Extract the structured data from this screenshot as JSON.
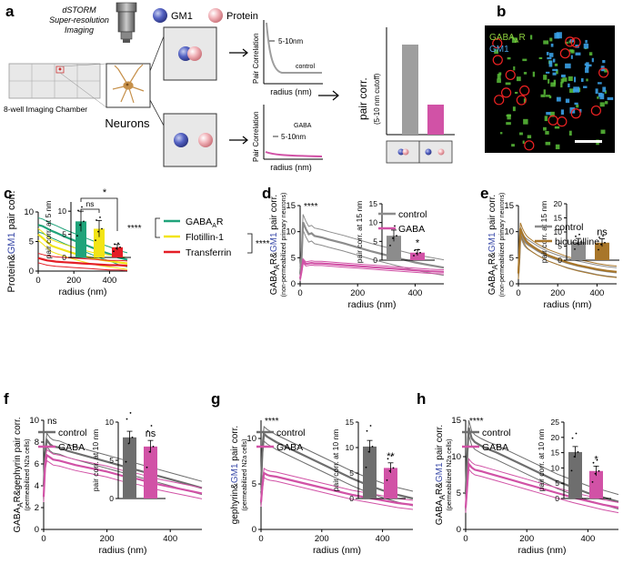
{
  "panel_labels": {
    "a": "a",
    "b": "b",
    "c": "c",
    "d": "d",
    "e": "e",
    "f": "f",
    "g": "g",
    "h": "h"
  },
  "colors": {
    "gm1": "#3a4aa8",
    "protein": "#e8a0a6",
    "grey": "#8c8c8c",
    "dark_grey": "#6e6e6e",
    "pink": "#d152a6",
    "green": "#1fa37a",
    "yellow": "#f2e416",
    "red": "#e41e26",
    "bronze": "#a8762a"
  },
  "schematic": {
    "dstorm_line1": "dSTORM",
    "dstorm_line2": "Super-resolution",
    "dstorm_line3": "Imaging",
    "legend_gm1": "GM1",
    "legend_protein": "Protein",
    "chamber_label": "8-well Imaging Chamber",
    "neurons_label": "Neurons",
    "top_curve": {
      "ylabel": "Pair Correlation",
      "xlabel": "radius (nm)",
      "annotation": "5-10nm",
      "series_label": "control"
    },
    "bottom_curve": {
      "ylabel": "Pair Correlation",
      "xlabel": "radius (nm)",
      "annotation": "5-10nm",
      "series_label": "GABA"
    },
    "bar": {
      "ylabel_line1": "pair corr.",
      "ylabel_line2": "(5-10 nm cutoff)",
      "values": [
        0.9,
        0.3
      ]
    }
  },
  "microscopy": {
    "label_gaba": "GABAAR",
    "label_gaba_main": "GABA",
    "label_gaba_sub": "A",
    "label_gaba_end": "R",
    "label_gm1": "GM1"
  },
  "chart_data": [
    {
      "id": "c",
      "type": "line",
      "ylabel_part1": "Protein&",
      "ylabel_part2": "GM1",
      "ylabel_part3": " pair corr.",
      "xlabel": "radius (nm)",
      "xlim": [
        0,
        500
      ],
      "ylim": [
        0,
        10
      ],
      "xticks": [
        "0",
        "200",
        "400"
      ],
      "yticks": [
        "0",
        "5",
        "10"
      ],
      "x": [
        0,
        25,
        50,
        75,
        100,
        150,
        200,
        250,
        300,
        350,
        400,
        450,
        500
      ],
      "series": [
        {
          "name": "GABAAR",
          "label_main": "GABA",
          "label_sub": "A",
          "label_end": "R",
          "color": "#1fa37a",
          "values": [
            7.8,
            7.6,
            7.2,
            6.8,
            6.5,
            5.8,
            5.2,
            4.6,
            4.0,
            3.4,
            2.9,
            2.3,
            1.9
          ],
          "err": 1.2
        },
        {
          "name": "Flotillin-1",
          "color": "#f2e416",
          "values": [
            6.2,
            5.6,
            4.9,
            4.3,
            4.0,
            3.5,
            3.0,
            2.6,
            2.2,
            1.9,
            1.7,
            1.5,
            1.3
          ],
          "err": 1.0
        },
        {
          "name": "Transferrin",
          "color": "#e41e26",
          "values": [
            2.2,
            2.0,
            1.8,
            1.7,
            1.6,
            1.5,
            1.4,
            1.3,
            1.2,
            1.1,
            1.0,
            1.0,
            0.9
          ],
          "err": 0.8
        }
      ],
      "inset": {
        "ylabel": "pair corr. at 5 nm",
        "yticks": [
          "0",
          "5",
          "10"
        ],
        "ylim": [
          0,
          12
        ],
        "values": [
          7.8,
          6.2,
          2.2
        ],
        "err": [
          2.2,
          1.8,
          0.6
        ],
        "colors": [
          "#1fa37a",
          "#f2e416",
          "#e41e26"
        ],
        "sig_ns": "ns",
        "sig_star": "*"
      },
      "sig_brackets": [
        "****",
        "****"
      ]
    },
    {
      "id": "d",
      "type": "line",
      "ylabel_part1": "GABA",
      "ylabel_sub": "A",
      "ylabel_part2": "R&",
      "ylabel_part3": "GM1",
      "ylabel_part4": " pair corr.",
      "ylabel_sub2": "(non-permeabilized primary neurons)",
      "xlabel": "radius (nm)",
      "xlim": [
        0,
        500
      ],
      "ylim": [
        0,
        15
      ],
      "xticks": [
        "0",
        "200",
        "400"
      ],
      "yticks": [
        "0",
        "5",
        "10",
        "15"
      ],
      "x": [
        0,
        5,
        10,
        20,
        30,
        40,
        50,
        75,
        100,
        150,
        200,
        250,
        300,
        350,
        400,
        450,
        500
      ],
      "series": [
        {
          "name": "control",
          "color": "#8c8c8c",
          "values": [
            2,
            5,
            11.8,
            10.5,
            9.5,
            9.7,
            9.2,
            8.9,
            8.5,
            7.8,
            7.0,
            6.2,
            5.5,
            4.8,
            4.1,
            3.6,
            3.1
          ],
          "err": 1.5
        },
        {
          "name": "GABA",
          "color": "#d152a6",
          "values": [
            1,
            2.5,
            4.4,
            3.8,
            3.9,
            4.0,
            3.9,
            3.9,
            3.8,
            3.6,
            3.4,
            3.2,
            3.0,
            2.8,
            2.6,
            2.4,
            2.3
          ],
          "err": 0.4
        }
      ],
      "inset": {
        "ylabel": "pair corr. at 15 nm",
        "yticks": [
          "0",
          "5",
          "10",
          "15"
        ],
        "ylim": [
          0,
          15
        ],
        "values": [
          6.5,
          2.0
        ],
        "err": [
          1.5,
          0.8
        ],
        "colors": [
          "#8c8c8c",
          "#d152a6"
        ],
        "sig": "*"
      },
      "sig": "****"
    },
    {
      "id": "e",
      "type": "line",
      "ylabel_part1": "GABA",
      "ylabel_sub": "A",
      "ylabel_part2": "R&",
      "ylabel_part3": "GM1",
      "ylabel_part4": " pair corr.",
      "ylabel_sub2": "(non-permeabilized primary neurons)",
      "xlabel": "radius (nm)",
      "xlim": [
        0,
        500
      ],
      "ylim": [
        0,
        15
      ],
      "xticks": [
        "0",
        "200",
        "400"
      ],
      "yticks": [
        "0",
        "5",
        "10",
        "15"
      ],
      "x": [
        0,
        5,
        10,
        20,
        30,
        40,
        50,
        75,
        100,
        150,
        200,
        250,
        300,
        350,
        400,
        450,
        500
      ],
      "series": [
        {
          "name": "control",
          "color": "#8c8c8c",
          "values": [
            2,
            5,
            10,
            9,
            8.2,
            7.8,
            7.5,
            6.9,
            6.3,
            5.3,
            4.6,
            4.0,
            3.5,
            3.1,
            2.7,
            2.4,
            2.2
          ],
          "err": 0.9
        },
        {
          "name": "bicuculline",
          "color": "#a8762a",
          "values": [
            2,
            6,
            10.6,
            9.6,
            8.8,
            8.2,
            7.8,
            7.1,
            6.5,
            5.5,
            4.8,
            4.1,
            3.6,
            3.2,
            2.8,
            2.5,
            2.3
          ],
          "err": 1.1
        }
      ],
      "inset": {
        "ylabel": "pair corr. at 15 nm",
        "yticks": [
          "0",
          "5",
          "10",
          "15",
          "20"
        ],
        "ylim": [
          0,
          20
        ],
        "values": [
          6.5,
          6.2
        ],
        "err": [
          1.2,
          1.4
        ],
        "colors": [
          "#8c8c8c",
          "#a8762a"
        ],
        "sig": "ns"
      }
    },
    {
      "id": "f",
      "type": "line",
      "ylabel_part1": "GABA",
      "ylabel_sub": "A",
      "ylabel_part2": "R&gephyrin pair corr.",
      "ylabel_sub2": "(permeabilized N2a cells)",
      "xlabel": "radius (nm)",
      "xlim": [
        0,
        500
      ],
      "ylim": [
        0,
        10
      ],
      "xticks": [
        "0",
        "200",
        "400"
      ],
      "yticks": [
        "0",
        "2",
        "4",
        "6",
        "8",
        "10"
      ],
      "x": [
        0,
        5,
        10,
        20,
        30,
        50,
        75,
        100,
        150,
        200,
        250,
        300,
        350,
        400,
        450,
        500
      ],
      "series": [
        {
          "name": "control",
          "color": "#6e6e6e",
          "values": [
            4,
            7,
            8.2,
            7.8,
            7.6,
            7.5,
            7.2,
            7.0,
            6.6,
            6.2,
            5.8,
            5.4,
            5.0,
            4.6,
            4.2,
            3.8
          ],
          "err": 0.6
        },
        {
          "name": "GABA",
          "color": "#d152a6",
          "values": [
            3,
            6,
            6.8,
            6.6,
            6.4,
            6.3,
            6.1,
            5.9,
            5.6,
            5.3,
            4.9,
            4.6,
            4.2,
            3.9,
            3.6,
            3.3
          ],
          "err": 0.5
        }
      ],
      "inset": {
        "ylabel": "pair corr. at 10 nm",
        "yticks": [
          "0",
          "5",
          "10"
        ],
        "ylim": [
          0,
          10
        ],
        "values": [
          8.0,
          6.8
        ],
        "err": [
          0.8,
          0.8
        ],
        "colors": [
          "#6e6e6e",
          "#d152a6"
        ],
        "sig": "ns"
      },
      "sig": "ns"
    },
    {
      "id": "g",
      "type": "line",
      "ylabel_part1": "gephyrin&",
      "ylabel_part2": "GM1",
      "ylabel_part3": " pair corr.",
      "ylabel_sub2": "(permeabilized N2a cells)",
      "xlabel": "radius (nm)",
      "xlim": [
        0,
        500
      ],
      "ylim": [
        0,
        12
      ],
      "xticks": [
        "0",
        "200",
        "400"
      ],
      "yticks": [
        "0",
        "5",
        "10"
      ],
      "x": [
        0,
        5,
        10,
        20,
        30,
        50,
        75,
        100,
        150,
        200,
        250,
        300,
        350,
        400,
        450,
        500
      ],
      "series": [
        {
          "name": "control",
          "color": "#6e6e6e",
          "values": [
            5,
            9,
            10.5,
            10.2,
            10.0,
            9.6,
            9.2,
            8.8,
            8.0,
            7.2,
            6.4,
            5.6,
            4.9,
            4.3,
            3.8,
            3.4
          ],
          "err": 0.8
        },
        {
          "name": "GABA",
          "color": "#d152a6",
          "values": [
            3,
            5,
            6.2,
            6.0,
            5.9,
            5.8,
            5.6,
            5.4,
            5.0,
            4.6,
            4.2,
            3.8,
            3.5,
            3.2,
            2.9,
            2.7
          ],
          "err": 0.5
        }
      ],
      "inset": {
        "ylabel": "pair corr. at 10 nm",
        "yticks": [
          "0",
          "5",
          "10",
          "15"
        ],
        "ylim": [
          0,
          15
        ],
        "values": [
          10.2,
          6.0
        ],
        "err": [
          1.2,
          1.0
        ],
        "colors": [
          "#6e6e6e",
          "#d152a6"
        ],
        "sig": "**"
      },
      "sig": "****"
    },
    {
      "id": "h",
      "type": "line",
      "ylabel_part1": "GABA",
      "ylabel_sub": "A",
      "ylabel_part2": "R&",
      "ylabel_part3": "GM1",
      "ylabel_part4": " pair corr.",
      "ylabel_sub2": "(permeabilized N2a cells)",
      "xlabel": "radius (nm)",
      "xlim": [
        0,
        500
      ],
      "ylim": [
        0,
        15
      ],
      "xticks": [
        "0",
        "200",
        "400"
      ],
      "yticks": [
        "0",
        "5",
        "10",
        "15"
      ],
      "x": [
        0,
        5,
        10,
        20,
        30,
        50,
        75,
        100,
        150,
        200,
        250,
        300,
        350,
        400,
        450,
        500
      ],
      "series": [
        {
          "name": "control",
          "color": "#6e6e6e",
          "values": [
            5,
            10,
            14,
            12.5,
            12.0,
            11.5,
            11.0,
            10.6,
            9.6,
            8.6,
            7.6,
            6.6,
            5.8,
            5.0,
            4.4,
            3.8
          ],
          "err": 1.0
        },
        {
          "name": "GABA",
          "color": "#d152a6",
          "values": [
            3,
            6,
            9.0,
            8.5,
            8.2,
            8.0,
            7.7,
            7.4,
            6.8,
            6.2,
            5.6,
            5.0,
            4.4,
            3.9,
            3.4,
            3.0
          ],
          "err": 0.7
        }
      ],
      "inset": {
        "ylabel": "pair corr. at 10 nm",
        "yticks": [
          "0",
          "5",
          "10",
          "15",
          "20",
          "25"
        ],
        "ylim": [
          0,
          25
        ],
        "values": [
          15.2,
          9.0
        ],
        "err": [
          1.8,
          1.6
        ],
        "colors": [
          "#6e6e6e",
          "#d152a6"
        ],
        "sig": "*"
      },
      "sig": "****"
    }
  ]
}
